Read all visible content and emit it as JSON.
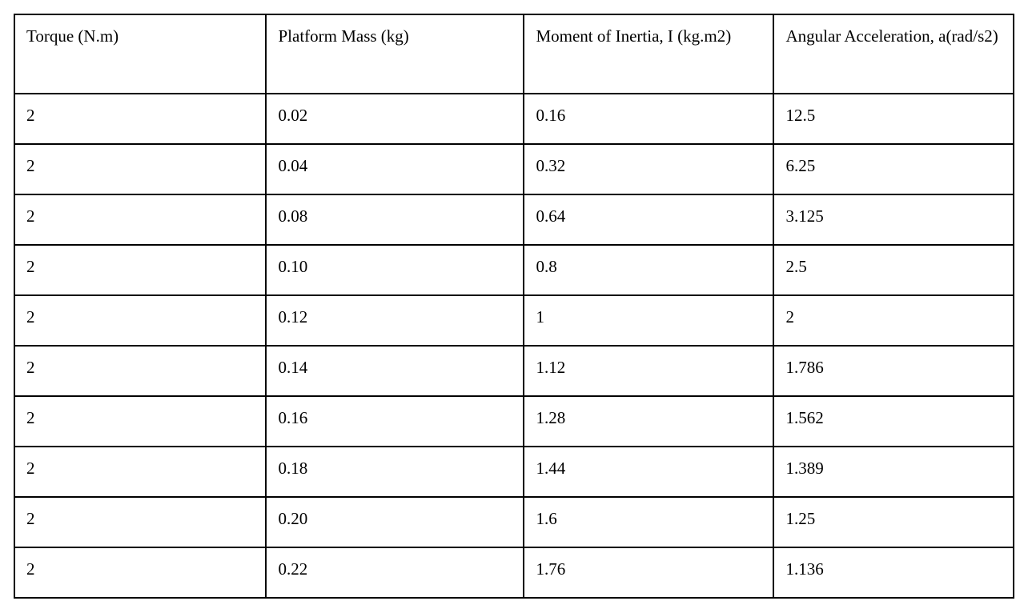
{
  "colors": {
    "border": "#000000",
    "text": "#000000",
    "background": "#ffffff"
  },
  "table": {
    "headers": [
      "Torque (N.m)",
      "Platform Mass (kg)",
      "Moment of Inertia, I (kg.m2)",
      "Angular Acceleration, a(rad/s2)"
    ],
    "rows": [
      [
        "2",
        "0.02",
        "0.16",
        "12.5"
      ],
      [
        "2",
        "0.04",
        "0.32",
        "6.25"
      ],
      [
        "2",
        "0.08",
        "0.64",
        "3.125"
      ],
      [
        "2",
        "0.10",
        "0.8",
        "2.5"
      ],
      [
        "2",
        "0.12",
        "1",
        "2"
      ],
      [
        "2",
        "0.14",
        "1.12",
        "1.786"
      ],
      [
        "2",
        "0.16",
        "1.28",
        "1.562"
      ],
      [
        "2",
        "0.18",
        "1.44",
        "1.389"
      ],
      [
        "2",
        "0.20",
        "1.6",
        "1.25"
      ],
      [
        "2",
        "0.22",
        "1.76",
        "1.136"
      ]
    ]
  },
  "chart_data": {
    "type": "table",
    "title": "",
    "columns": [
      "Torque (N.m)",
      "Platform Mass (kg)",
      "Moment of Inertia, I (kg.m2)",
      "Angular Acceleration, a(rad/s2)"
    ],
    "torque_Nm": [
      2,
      2,
      2,
      2,
      2,
      2,
      2,
      2,
      2,
      2
    ],
    "platform_mass_kg": [
      0.02,
      0.04,
      0.08,
      0.1,
      0.12,
      0.14,
      0.16,
      0.18,
      0.2,
      0.22
    ],
    "moment_of_inertia_kgm2": [
      0.16,
      0.32,
      0.64,
      0.8,
      1,
      1.12,
      1.28,
      1.44,
      1.6,
      1.76
    ],
    "angular_acceleration_rad_s2": [
      12.5,
      6.25,
      3.125,
      2.5,
      2,
      1.786,
      1.562,
      1.389,
      1.25,
      1.136
    ]
  }
}
